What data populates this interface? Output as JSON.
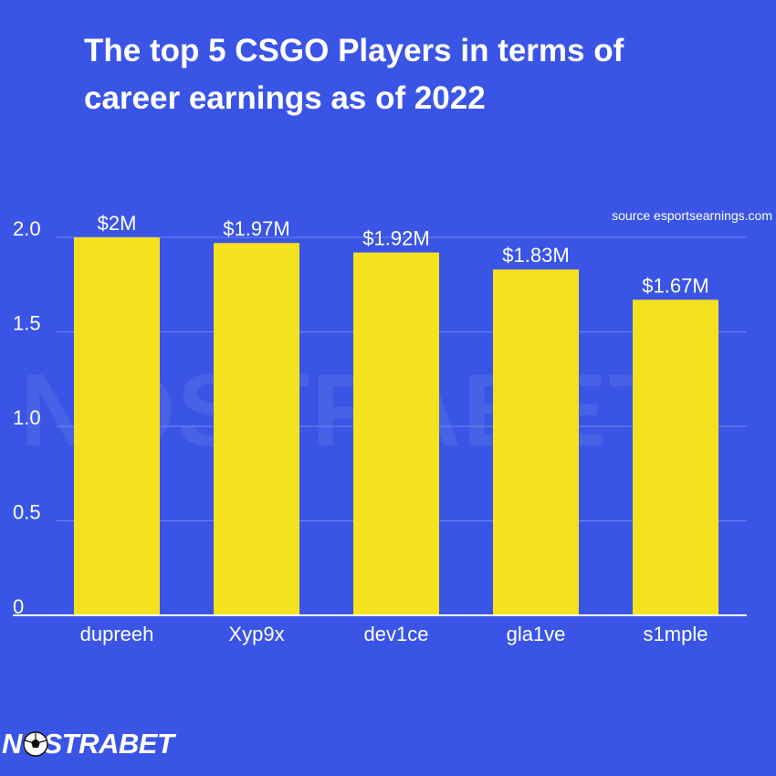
{
  "title": "The top 5 CSGO Players in terms of career earnings as of 2022",
  "source": "source esportsearnings.com",
  "watermark": "NOSTRABET",
  "logo": "NOSTRABET",
  "colors": {
    "background": "#3a55e6",
    "bar": "#f5e11d",
    "text": "#ffffff",
    "grid": "#6f86ee"
  },
  "chart_data": {
    "type": "bar",
    "title": "The top 5 CSGO Players in terms of career earnings as of 2022",
    "xlabel": "",
    "ylabel": "",
    "categories": [
      "dupreeh",
      "Xyp9x",
      "dev1ce",
      "gla1ve",
      "s1mple"
    ],
    "values": [
      2.0,
      1.97,
      1.92,
      1.83,
      1.67
    ],
    "data_labels": [
      "$2M",
      "$1.97M",
      "$1.92M",
      "$1.83M",
      "$1.67M"
    ],
    "yticks": [
      0,
      0.5,
      1.0,
      1.5,
      2.0
    ],
    "ytick_labels": [
      "0",
      "0.5",
      "1.0",
      "1.5",
      "2.0"
    ],
    "ylim": [
      0,
      2.0
    ],
    "grid": true,
    "legend": "none"
  }
}
